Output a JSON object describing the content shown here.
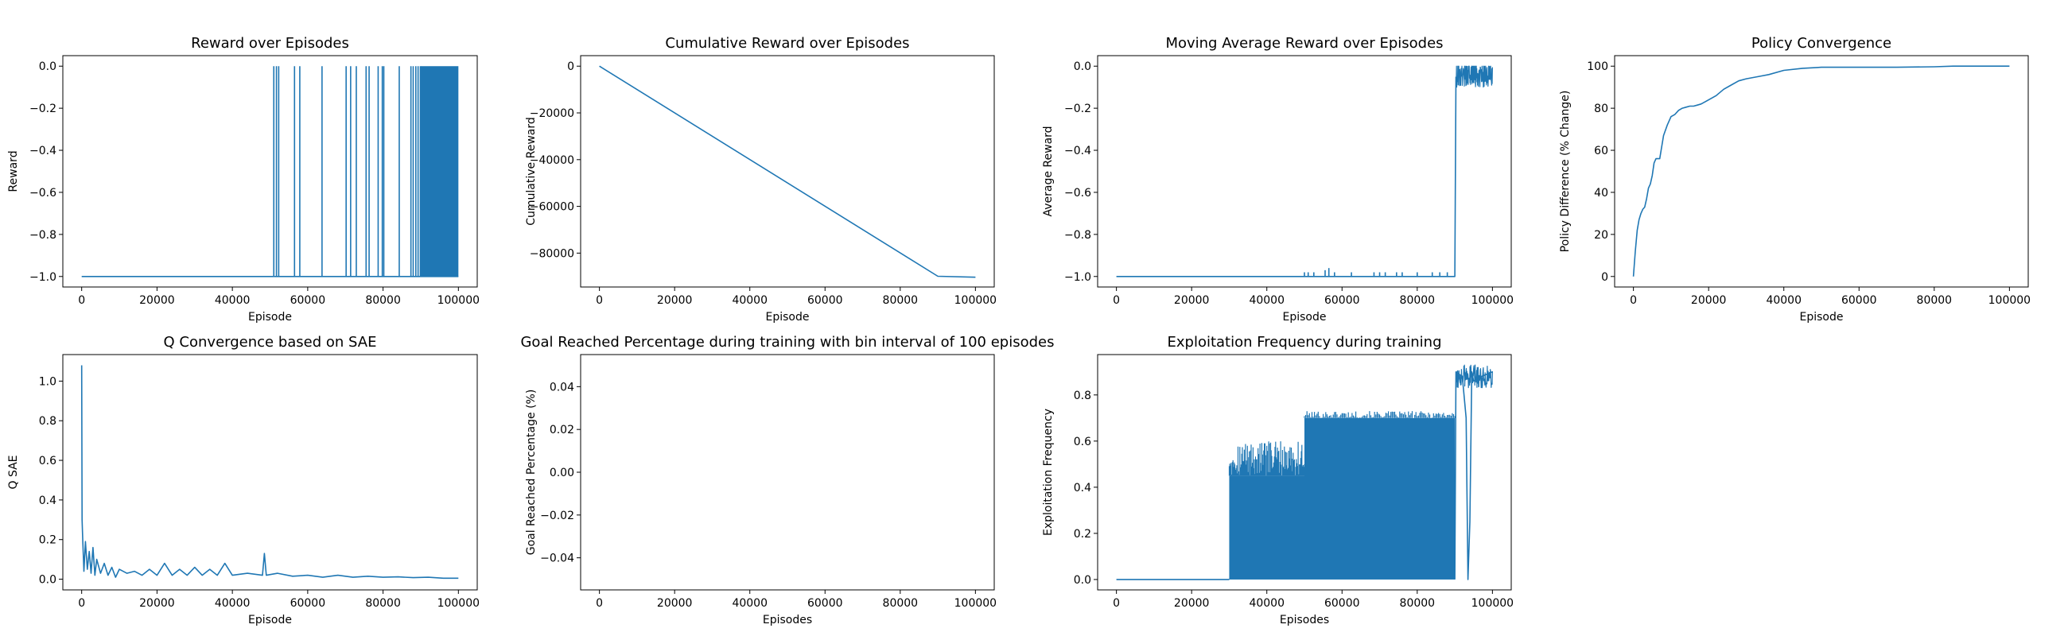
{
  "figure": {
    "suptitle": "",
    "line_color": "#1f77b4"
  },
  "chart_data": [
    {
      "type": "line",
      "title": "Reward over Episodes",
      "xlabel": "Episode",
      "ylabel": "Reward",
      "xlim": [
        -5000,
        105000
      ],
      "ylim": [
        -1.05,
        0.05
      ],
      "xticks": [
        0,
        20000,
        40000,
        60000,
        80000,
        100000
      ],
      "xtick_labels": [
        "0",
        "20000",
        "40000",
        "60000",
        "80000",
        "100000"
      ],
      "yticks": [
        -1.0,
        -0.8,
        -0.6,
        -0.4,
        -0.2,
        0.0
      ],
      "ytick_labels": [
        "−1.0",
        "−0.8",
        "−0.6",
        "−0.4",
        "−0.2",
        "0.0"
      ],
      "grid": false,
      "series": [
        {
          "baseline": -1.0,
          "x": [
            0,
            51000
          ],
          "y": [
            -1.0,
            -1.0
          ],
          "spikes_at": [
            51000,
            51700,
            52300,
            56500,
            57900,
            63800,
            70200,
            71400,
            72900,
            75500,
            76300,
            78700,
            79800,
            80200,
            84300,
            87400,
            88000,
            88700,
            89300,
            89900
          ],
          "spike_value": 0.0,
          "dense_region": [
            90000,
            100000
          ]
        }
      ]
    },
    {
      "type": "line",
      "title": "Cumulative Reward over Episodes",
      "xlabel": "Episode",
      "ylabel": "Cumulative Reward",
      "xlim": [
        -5000,
        105000
      ],
      "ylim": [
        -94500,
        4500
      ],
      "xticks": [
        0,
        20000,
        40000,
        60000,
        80000,
        100000
      ],
      "xtick_labels": [
        "0",
        "20000",
        "40000",
        "60000",
        "80000",
        "100000"
      ],
      "yticks": [
        -80000,
        -60000,
        -40000,
        -20000,
        0
      ],
      "ytick_labels": [
        "−80000",
        "−60000",
        "−40000",
        "−20000",
        "0"
      ],
      "grid": false,
      "series": [
        {
          "x": [
            0,
            90000,
            100000
          ],
          "y": [
            0,
            -89900,
            -90300
          ]
        }
      ]
    },
    {
      "type": "line",
      "title": "Moving Average Reward over Episodes",
      "xlabel": "Episode",
      "ylabel": "Average Reward",
      "xlim": [
        -5000,
        105000
      ],
      "ylim": [
        -1.05,
        0.05
      ],
      "xticks": [
        0,
        20000,
        40000,
        60000,
        80000,
        100000
      ],
      "xtick_labels": [
        "0",
        "20000",
        "40000",
        "60000",
        "80000",
        "100000"
      ],
      "yticks": [
        -1.0,
        -0.8,
        -0.6,
        -0.4,
        -0.2,
        0.0
      ],
      "ytick_labels": [
        "−1.0",
        "−0.8",
        "−0.6",
        "−0.4",
        "−0.2",
        "0.0"
      ],
      "grid": false,
      "series": [
        {
          "x": [
            0,
            90000,
            90300
          ],
          "y": [
            -1.0,
            -1.0,
            -0.05
          ],
          "bumps": [
            [
              50000,
              -0.98
            ],
            [
              51000,
              -0.98
            ],
            [
              52500,
              -0.98
            ],
            [
              55500,
              -0.97
            ],
            [
              56500,
              -0.96
            ],
            [
              58000,
              -0.98
            ],
            [
              62500,
              -0.98
            ],
            [
              68500,
              -0.98
            ],
            [
              70000,
              -0.98
            ],
            [
              71500,
              -0.98
            ],
            [
              74500,
              -0.98
            ],
            [
              76000,
              -0.98
            ],
            [
              80000,
              -0.98
            ],
            [
              84000,
              -0.98
            ],
            [
              86000,
              -0.98
            ],
            [
              88000,
              -0.98
            ]
          ],
          "noisy_band": {
            "x": [
              90300,
              100000
            ],
            "center": -0.04,
            "amplitude": 0.06
          }
        }
      ]
    },
    {
      "type": "line",
      "title": "Policy Convergence",
      "xlabel": "Episode",
      "ylabel": "Policy Difference (% Change)",
      "xlim": [
        -5000,
        105000
      ],
      "ylim": [
        -5,
        105
      ],
      "xticks": [
        0,
        20000,
        40000,
        60000,
        80000,
        100000
      ],
      "xtick_labels": [
        "0",
        "20000",
        "40000",
        "60000",
        "80000",
        "100000"
      ],
      "yticks": [
        0,
        20,
        40,
        60,
        80,
        100
      ],
      "ytick_labels": [
        "0",
        "20",
        "40",
        "60",
        "80",
        "100"
      ],
      "grid": false,
      "series": [
        {
          "x": [
            0,
            200,
            500,
            1000,
            1500,
            2000,
            2500,
            3000,
            3500,
            4000,
            4500,
            5000,
            5500,
            6000,
            7000,
            8000,
            9000,
            10000,
            11000,
            12000,
            13000,
            14000,
            15000,
            16000,
            17000,
            18000,
            19000,
            20000,
            22000,
            24000,
            26000,
            28000,
            30000,
            33000,
            36000,
            40000,
            45000,
            50000,
            60000,
            70000,
            80000,
            85000,
            90000,
            100000
          ],
          "y": [
            0,
            5,
            12,
            22,
            27,
            30,
            32,
            33,
            37,
            42,
            44,
            48,
            54,
            56,
            56,
            67,
            72,
            76,
            77,
            79,
            80,
            80.5,
            81,
            81,
            81.5,
            82,
            83,
            84,
            86,
            89,
            91,
            93,
            94,
            95,
            96,
            98,
            99,
            99.5,
            99.5,
            99.5,
            99.7,
            100,
            100,
            100
          ]
        }
      ]
    },
    {
      "type": "line",
      "title": "Q Convergence based on SAE",
      "xlabel": "Episode",
      "ylabel": "Q SAE",
      "xlim": [
        -5000,
        105000
      ],
      "ylim": [
        -0.054,
        1.134
      ],
      "xticks": [
        0,
        20000,
        40000,
        60000,
        80000,
        100000
      ],
      "xtick_labels": [
        "0",
        "20000",
        "40000",
        "60000",
        "80000",
        "100000"
      ],
      "yticks": [
        0.0,
        0.2,
        0.4,
        0.6,
        0.8,
        1.0
      ],
      "ytick_labels": [
        "0.0",
        "0.2",
        "0.4",
        "0.6",
        "0.8",
        "1.0"
      ],
      "grid": false,
      "series": [
        {
          "x": [
            0,
            100,
            300,
            600,
            1000,
            1500,
            2000,
            2500,
            3000,
            3500,
            4000,
            5000,
            6000,
            7000,
            8000,
            9000,
            10000,
            12000,
            14000,
            16000,
            18000,
            20000,
            22000,
            24000,
            26000,
            28000,
            30000,
            32000,
            34000,
            36000,
            38000,
            40000,
            44000,
            48000,
            48500,
            49000,
            52000,
            56000,
            60000,
            64000,
            68000,
            72000,
            76000,
            80000,
            84000,
            88000,
            92000,
            96000,
            100000
          ],
          "y": [
            1.08,
            0.3,
            0.19,
            0.04,
            0.19,
            0.05,
            0.14,
            0.03,
            0.16,
            0.02,
            0.1,
            0.03,
            0.08,
            0.02,
            0.06,
            0.01,
            0.05,
            0.03,
            0.04,
            0.02,
            0.05,
            0.02,
            0.08,
            0.02,
            0.05,
            0.02,
            0.06,
            0.02,
            0.05,
            0.02,
            0.08,
            0.02,
            0.03,
            0.02,
            0.13,
            0.02,
            0.03,
            0.015,
            0.02,
            0.01,
            0.02,
            0.01,
            0.015,
            0.01,
            0.012,
            0.008,
            0.01,
            0.005,
            0.005
          ]
        }
      ]
    },
    {
      "type": "line",
      "title": "Goal Reached Percentage during training with bin interval of 100 episodes",
      "xlabel": "Episodes",
      "ylabel": "Goal Reached Percentage (%)",
      "xlim": [
        -5000,
        105000
      ],
      "ylim": [
        -0.055,
        0.055
      ],
      "xticks": [
        0,
        20000,
        40000,
        60000,
        80000,
        100000
      ],
      "xtick_labels": [
        "0",
        "20000",
        "40000",
        "60000",
        "80000",
        "100000"
      ],
      "yticks": [
        -0.04,
        -0.02,
        0.0,
        0.02,
        0.04
      ],
      "ytick_labels": [
        "−0.04",
        "−0.02",
        "0.00",
        "0.02",
        "0.04"
      ],
      "grid": false,
      "series": []
    },
    {
      "type": "line",
      "title": "Exploitation Frequency during training",
      "xlabel": "Episodes",
      "ylabel": "Exploitation Frequency",
      "xlim": [
        -5000,
        105000
      ],
      "ylim": [
        -0.045,
        0.975
      ],
      "xticks": [
        0,
        20000,
        40000,
        60000,
        80000,
        100000
      ],
      "xtick_labels": [
        "0",
        "20000",
        "40000",
        "60000",
        "80000",
        "100000"
      ],
      "yticks": [
        0.0,
        0.2,
        0.4,
        0.6,
        0.8
      ],
      "ytick_labels": [
        "0.0",
        "0.2",
        "0.4",
        "0.6",
        "0.8"
      ],
      "grid": false,
      "series": [
        {
          "x": [
            0,
            30000
          ],
          "y": [
            0.0,
            0.0
          ],
          "oscillation_segments": [
            {
              "x": [
                30000,
                50000
              ],
              "low": 0.0,
              "high": 0.45,
              "peak": 0.6
            },
            {
              "x": [
                50000,
                90000
              ],
              "low": 0.0,
              "high": 0.7,
              "peak": 0.73
            }
          ],
          "tail": {
            "x": [
              90000,
              90300,
              92000,
              93000,
              93500,
              94000,
              94500,
              95000,
              97000,
              100000
            ],
            "y": [
              0.0,
              0.9,
              0.88,
              0.7,
              0.0,
              0.25,
              0.9,
              0.86,
              0.88,
              0.9
            ]
          },
          "tail_band": {
            "x": [
              90300,
              100000
            ],
            "center": 0.88,
            "amplitude": 0.05
          }
        }
      ]
    }
  ]
}
